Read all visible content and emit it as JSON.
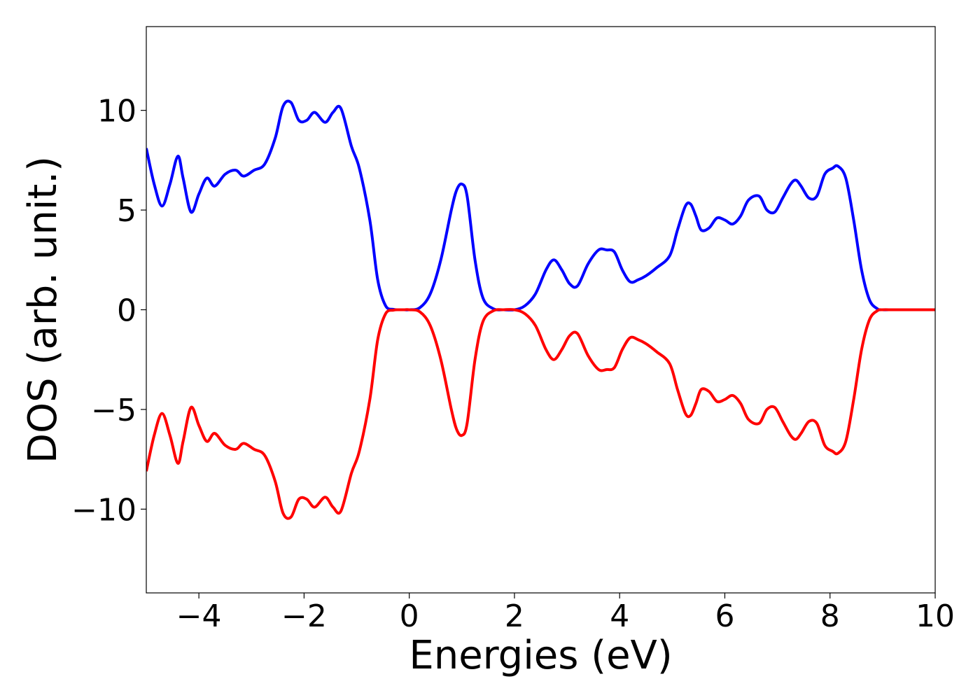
{
  "chart_data": {
    "type": "line",
    "xlabel": "Energies (eV)",
    "ylabel": "DOS (arb. unit.)",
    "xlim": [
      -5,
      10
    ],
    "ylim": [
      -14.2,
      14.2
    ],
    "xticks": [
      -4,
      -2,
      0,
      2,
      4,
      6,
      8,
      10
    ],
    "xtick_labels": [
      "−4",
      "−2",
      "0",
      "2",
      "4",
      "6",
      "8",
      "10"
    ],
    "yticks": [
      -10,
      -5,
      0,
      5,
      10
    ],
    "ytick_labels": [
      "−10",
      "−5",
      "0",
      "5",
      "10"
    ],
    "grid": false,
    "series": [
      {
        "color": "#0000ff",
        "x": [
          -5.0,
          -4.85,
          -4.7,
          -4.55,
          -4.4,
          -4.3,
          -4.15,
          -4.0,
          -3.85,
          -3.7,
          -3.5,
          -3.3,
          -3.15,
          -2.95,
          -2.75,
          -2.55,
          -2.4,
          -2.25,
          -2.1,
          -1.95,
          -1.8,
          -1.6,
          -1.45,
          -1.3,
          -1.1,
          -0.95,
          -0.75,
          -0.6,
          -0.45,
          -0.3,
          -0.2,
          -0.1,
          0.0,
          0.2,
          0.4,
          0.6,
          0.8,
          0.9,
          1.0,
          1.1,
          1.25,
          1.4,
          1.6,
          1.8,
          2.0,
          2.2,
          2.4,
          2.6,
          2.75,
          2.9,
          3.05,
          3.2,
          3.4,
          3.6,
          3.75,
          3.9,
          4.05,
          4.2,
          4.35,
          4.5,
          4.7,
          4.95,
          5.1,
          5.25,
          5.35,
          5.45,
          5.55,
          5.7,
          5.85,
          6.0,
          6.15,
          6.3,
          6.45,
          6.65,
          6.8,
          6.95,
          7.1,
          7.25,
          7.35,
          7.45,
          7.6,
          7.75,
          7.9,
          8.05,
          8.15,
          8.3,
          8.45,
          8.6,
          8.75,
          8.9,
          9.0,
          9.2,
          9.5,
          10.0
        ],
        "y": [
          8.1,
          6.3,
          5.2,
          6.3,
          7.7,
          6.6,
          4.9,
          5.8,
          6.6,
          6.2,
          6.8,
          7.0,
          6.7,
          7.0,
          7.3,
          8.6,
          10.2,
          10.4,
          9.5,
          9.5,
          9.9,
          9.4,
          9.9,
          10.1,
          8.2,
          7.1,
          4.5,
          1.5,
          0.2,
          0.02,
          0.0,
          0.0,
          0.0,
          0.1,
          0.8,
          2.5,
          5.0,
          6.0,
          6.3,
          5.7,
          2.5,
          0.6,
          0.05,
          0.0,
          0.0,
          0.2,
          0.8,
          2.0,
          2.5,
          2.0,
          1.3,
          1.2,
          2.3,
          3.0,
          3.0,
          2.9,
          2.0,
          1.4,
          1.5,
          1.7,
          2.1,
          2.7,
          4.0,
          5.2,
          5.3,
          4.7,
          4.0,
          4.1,
          4.6,
          4.5,
          4.3,
          4.7,
          5.5,
          5.7,
          5.0,
          4.9,
          5.6,
          6.3,
          6.5,
          6.2,
          5.6,
          5.7,
          6.8,
          7.1,
          7.2,
          6.6,
          4.5,
          2.0,
          0.5,
          0.05,
          0.0,
          0.0,
          0.0,
          0.0
        ]
      },
      {
        "color": "#ff0000",
        "x": [
          -5.0,
          -4.85,
          -4.7,
          -4.55,
          -4.4,
          -4.3,
          -4.15,
          -4.0,
          -3.85,
          -3.7,
          -3.5,
          -3.3,
          -3.15,
          -2.95,
          -2.75,
          -2.55,
          -2.4,
          -2.25,
          -2.1,
          -1.95,
          -1.8,
          -1.6,
          -1.45,
          -1.3,
          -1.1,
          -0.95,
          -0.75,
          -0.6,
          -0.45,
          -0.3,
          -0.2,
          -0.1,
          0.0,
          0.2,
          0.4,
          0.6,
          0.8,
          0.9,
          1.0,
          1.1,
          1.25,
          1.4,
          1.6,
          1.8,
          2.0,
          2.2,
          2.4,
          2.6,
          2.75,
          2.9,
          3.05,
          3.2,
          3.4,
          3.6,
          3.75,
          3.9,
          4.05,
          4.2,
          4.35,
          4.5,
          4.7,
          4.95,
          5.1,
          5.25,
          5.35,
          5.45,
          5.55,
          5.7,
          5.85,
          6.0,
          6.15,
          6.3,
          6.45,
          6.65,
          6.8,
          6.95,
          7.1,
          7.25,
          7.35,
          7.45,
          7.6,
          7.75,
          7.9,
          8.05,
          8.15,
          8.3,
          8.45,
          8.6,
          8.75,
          8.9,
          9.0,
          9.2,
          9.5,
          10.0
        ],
        "y": [
          -8.1,
          -6.3,
          -5.2,
          -6.3,
          -7.7,
          -6.6,
          -4.9,
          -5.8,
          -6.6,
          -6.2,
          -6.8,
          -7.0,
          -6.7,
          -7.0,
          -7.3,
          -8.6,
          -10.2,
          -10.4,
          -9.5,
          -9.5,
          -9.9,
          -9.4,
          -9.9,
          -10.1,
          -8.2,
          -7.1,
          -4.5,
          -1.5,
          -0.2,
          -0.02,
          0.0,
          0.0,
          0.0,
          -0.1,
          -0.8,
          -2.5,
          -5.0,
          -6.0,
          -6.3,
          -5.7,
          -2.5,
          -0.6,
          -0.05,
          0.0,
          0.0,
          -0.2,
          -0.8,
          -2.0,
          -2.5,
          -2.0,
          -1.3,
          -1.2,
          -2.3,
          -3.0,
          -3.0,
          -2.9,
          -2.0,
          -1.4,
          -1.5,
          -1.7,
          -2.1,
          -2.7,
          -4.0,
          -5.2,
          -5.3,
          -4.7,
          -4.0,
          -4.1,
          -4.6,
          -4.5,
          -4.3,
          -4.7,
          -5.5,
          -5.7,
          -5.0,
          -4.9,
          -5.6,
          -6.3,
          -6.5,
          -6.2,
          -5.6,
          -5.7,
          -6.8,
          -7.1,
          -7.2,
          -6.6,
          -4.5,
          -2.0,
          -0.5,
          -0.05,
          0.0,
          0.0,
          0.0,
          0.0
        ]
      }
    ]
  }
}
